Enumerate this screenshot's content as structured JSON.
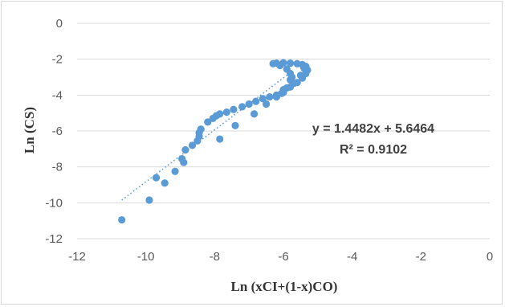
{
  "chart_data": {
    "type": "scatter",
    "title": "",
    "xlabel": "Ln (xCI+(1-x)CO)",
    "ylabel": "Ln (CS)",
    "xlim": [
      -12,
      0
    ],
    "ylim": [
      -12,
      0
    ],
    "x_ticks": [
      "-12",
      "-10",
      "-8",
      "-6",
      "-4",
      "-2",
      "0"
    ],
    "y_ticks": [
      "0",
      "-2",
      "-4",
      "-6",
      "-8",
      "-10",
      "-12"
    ],
    "grid": "horizontal",
    "legend": "none",
    "point_color": "#5b9bd5",
    "trendline": {
      "type": "linear",
      "slope": 1.4482,
      "intercept": 5.6464,
      "x_range": [
        -10.7,
        -5.9
      ],
      "style": "dotted",
      "equation_label": "y = 1.4482x + 5.6464",
      "r2_label": "R² = 0.9102"
    },
    "points": [
      {
        "x": -10.7,
        "y": -10.95
      },
      {
        "x": -9.9,
        "y": -9.85
      },
      {
        "x": -9.7,
        "y": -8.6
      },
      {
        "x": -9.45,
        "y": -8.9
      },
      {
        "x": -9.15,
        "y": -8.25
      },
      {
        "x": -8.95,
        "y": -7.55
      },
      {
        "x": -8.9,
        "y": -7.75
      },
      {
        "x": -8.85,
        "y": -7.05
      },
      {
        "x": -8.65,
        "y": -6.8
      },
      {
        "x": -8.5,
        "y": -6.55
      },
      {
        "x": -8.45,
        "y": -6.3
      },
      {
        "x": -8.45,
        "y": -6.1
      },
      {
        "x": -8.4,
        "y": -5.9
      },
      {
        "x": -8.2,
        "y": -5.5
      },
      {
        "x": -8.05,
        "y": -5.3
      },
      {
        "x": -7.95,
        "y": -5.15
      },
      {
        "x": -7.85,
        "y": -6.45
      },
      {
        "x": -7.85,
        "y": -5.05
      },
      {
        "x": -7.65,
        "y": -4.95
      },
      {
        "x": -7.4,
        "y": -5.7
      },
      {
        "x": -7.45,
        "y": -4.8
      },
      {
        "x": -7.2,
        "y": -4.65
      },
      {
        "x": -7.0,
        "y": -4.5
      },
      {
        "x": -6.85,
        "y": -5.05
      },
      {
        "x": -6.8,
        "y": -4.35
      },
      {
        "x": -6.6,
        "y": -4.2
      },
      {
        "x": -6.5,
        "y": -4.5
      },
      {
        "x": -6.4,
        "y": -4.1
      },
      {
        "x": -6.2,
        "y": -4.0
      },
      {
        "x": -6.2,
        "y": -4.1
      },
      {
        "x": -6.0,
        "y": -3.85
      },
      {
        "x": -6.0,
        "y": -3.7
      },
      {
        "x": -5.8,
        "y": -3.55
      },
      {
        "x": -5.6,
        "y": -3.3
      },
      {
        "x": -5.45,
        "y": -3.05
      },
      {
        "x": -5.35,
        "y": -2.8
      },
      {
        "x": -5.3,
        "y": -2.6
      },
      {
        "x": -5.35,
        "y": -2.4
      },
      {
        "x": -5.45,
        "y": -2.3
      },
      {
        "x": -5.6,
        "y": -2.25
      },
      {
        "x": -5.8,
        "y": -2.22
      },
      {
        "x": -6.0,
        "y": -2.2
      },
      {
        "x": -6.2,
        "y": -2.22
      },
      {
        "x": -6.3,
        "y": -2.25
      },
      {
        "x": -6.1,
        "y": -2.35
      },
      {
        "x": -5.9,
        "y": -2.55
      },
      {
        "x": -5.8,
        "y": -2.8
      },
      {
        "x": -5.75,
        "y": -3.0
      },
      {
        "x": -5.8,
        "y": -3.15
      },
      {
        "x": -5.7,
        "y": -3.35
      },
      {
        "x": -5.5,
        "y": -2.9
      },
      {
        "x": -5.4,
        "y": -2.5
      },
      {
        "x": -6.05,
        "y": -3.9
      },
      {
        "x": -5.9,
        "y": -3.6
      }
    ]
  }
}
